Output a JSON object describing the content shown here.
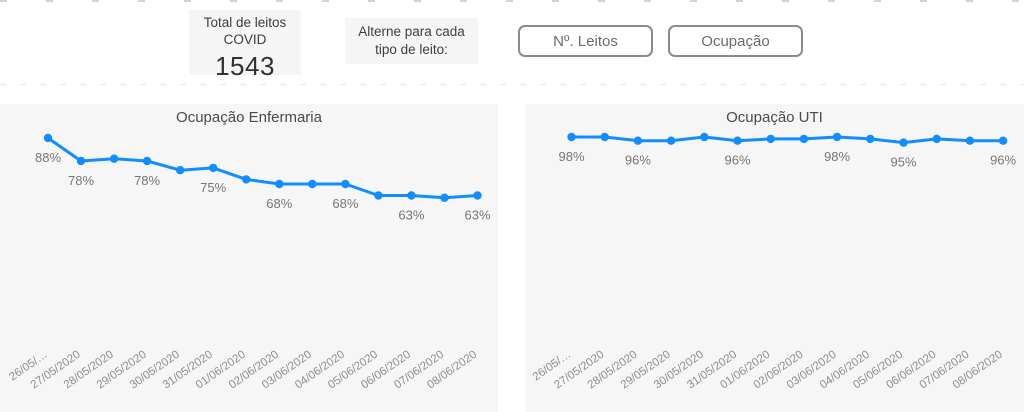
{
  "header": {
    "total_card": {
      "title_line1": "Total de leitos",
      "title_line2": "COVID",
      "value": "1543"
    },
    "toggle_hint": {
      "line1": "Alterne para cada",
      "line2": "tipo de leito:"
    },
    "buttons": [
      {
        "label": "Nº. Leitos"
      },
      {
        "label": "Ocupação"
      }
    ]
  },
  "colors": {
    "line": "#118DFF",
    "panel_bg": "#f6f6f6",
    "data_label": "#767676",
    "axis_label": "#8e8e8e",
    "title": "#4a4a4a",
    "button_border": "#8b8b8b",
    "button_text": "#6b6b6b",
    "card_bg": "#f5f5f5"
  },
  "chart_data": [
    {
      "type": "line",
      "title": "Ocupação Enfermaria",
      "x": [
        "26/05/…",
        "27/05/2020",
        "28/05/2020",
        "29/05/2020",
        "30/05/2020",
        "31/05/2020",
        "01/06/2020",
        "02/06/2020",
        "03/06/2020",
        "04/06/2020",
        "05/06/2020",
        "06/06/2020",
        "07/06/2020",
        "08/06/2020"
      ],
      "values": [
        88,
        78,
        79,
        78,
        74,
        75,
        70,
        68,
        68,
        68,
        63,
        63,
        62,
        63
      ],
      "unit": "%",
      "point_labels": {
        "0": "88%",
        "1": "78%",
        "3": "78%",
        "5": "75%",
        "7": "68%",
        "9": "68%",
        "11": "63%",
        "13": "63%"
      },
      "series_color": "#118DFF",
      "xlabel": "",
      "ylabel": "",
      "y_axis_visible": false,
      "grid": false,
      "legend": "none"
    },
    {
      "type": "line",
      "title": "Ocupação UTI",
      "x": [
        "26/05/…",
        "27/05/2020",
        "28/05/2020",
        "29/05/2020",
        "30/05/2020",
        "31/05/2020",
        "01/06/2020",
        "02/06/2020",
        "03/06/2020",
        "04/06/2020",
        "05/06/2020",
        "06/06/2020",
        "07/06/2020",
        "08/06/2020"
      ],
      "values": [
        98,
        98,
        96,
        96,
        98,
        96,
        97,
        97,
        98,
        97,
        95,
        97,
        96,
        96
      ],
      "unit": "%",
      "point_labels": {
        "0": "98%",
        "2": "96%",
        "5": "96%",
        "8": "98%",
        "10": "95%",
        "13": "96%"
      },
      "series_color": "#118DFF",
      "xlabel": "",
      "ylabel": "",
      "y_axis_visible": false,
      "grid": false,
      "legend": "none"
    }
  ]
}
